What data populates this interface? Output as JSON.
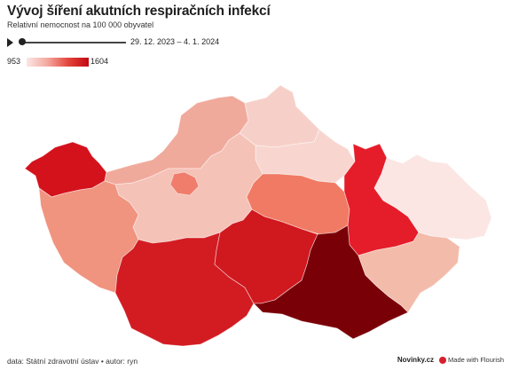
{
  "header": {
    "title": "Vývoj šíření akutních respiračních infekcí",
    "subtitle": "Relativní nemocnost na 100 000 obyvatel"
  },
  "timeline": {
    "date_range": "29. 12. 2023 – 4. 1. 2024",
    "position": 0
  },
  "legend": {
    "min": "953",
    "max": "1604",
    "color_min": "#fbe6e4",
    "color_max": "#c30813"
  },
  "footer": {
    "source": "data: Státní zdravotní ústav • autor: ryn",
    "brand": "Novinky.cz",
    "made_with": "Made with Flourish"
  },
  "regions": [
    {
      "id": "karlovarsky",
      "fill": "#d3121c"
    },
    {
      "id": "ustecky",
      "fill": "#f0aa9c"
    },
    {
      "id": "liberecky",
      "fill": "#f6d0c8"
    },
    {
      "id": "kralovehradecky",
      "fill": "#f8d6cf"
    },
    {
      "id": "stredocesky",
      "fill": "#f5c2b7"
    },
    {
      "id": "praha",
      "fill": "#f07d6c"
    },
    {
      "id": "plzensky",
      "fill": "#f0937f"
    },
    {
      "id": "pardubicky",
      "fill": "#f07a63"
    },
    {
      "id": "olomoucky",
      "fill": "#e51d2a"
    },
    {
      "id": "moravskoslezsky",
      "fill": "#fbe6e4"
    },
    {
      "id": "jihocesky",
      "fill": "#d21c22"
    },
    {
      "id": "vysocina",
      "fill": "#d0181f"
    },
    {
      "id": "jihomoravsky",
      "fill": "#7a0008"
    },
    {
      "id": "zlinsky",
      "fill": "#f3bba9"
    }
  ]
}
